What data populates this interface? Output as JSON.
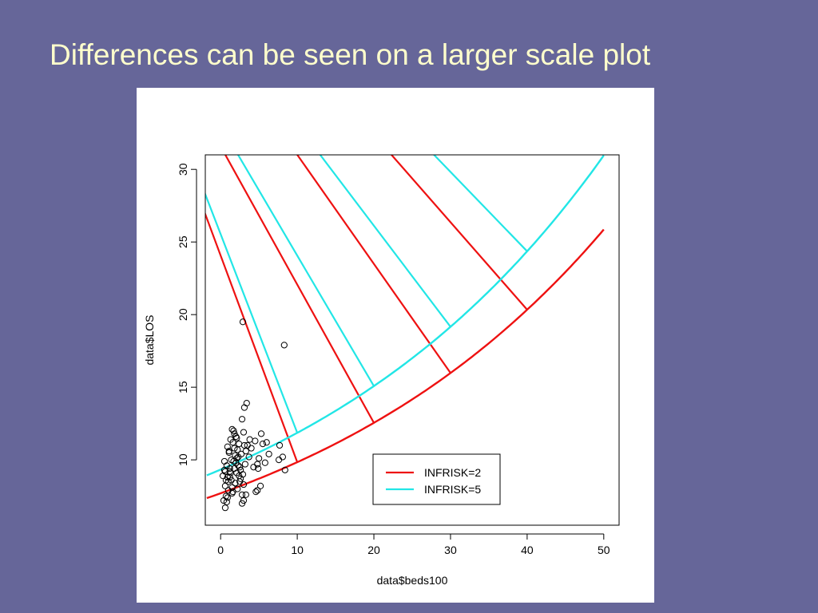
{
  "slide": {
    "title": "Differences can be seen on a larger scale plot"
  },
  "chart_data": {
    "type": "scatter",
    "title": "",
    "xlabel": "data$beds100",
    "ylabel": "data$LOS",
    "xlim": [
      -2,
      52
    ],
    "ylim": [
      5.5,
      31
    ],
    "x_ticks": [
      0,
      10,
      20,
      30,
      40,
      50
    ],
    "y_ticks": [
      10,
      15,
      20,
      25,
      30
    ],
    "grid": false,
    "legend_position": "bottom-right",
    "colors": {
      "red": "#ee1111",
      "cyan": "#22e6e6",
      "points": "#000000"
    },
    "points": {
      "x": [
        0.3,
        0.5,
        0.6,
        0.7,
        0.8,
        0.9,
        1.0,
        1.1,
        1.2,
        1.3,
        1.4,
        1.5,
        1.6,
        1.7,
        1.8,
        1.9,
        2.0,
        2.1,
        2.2,
        2.3,
        2.4,
        2.5,
        2.6,
        2.7,
        2.8,
        2.9,
        3.0,
        3.1,
        3.2,
        0.4,
        0.6,
        0.8,
        1.0,
        1.2,
        1.4,
        1.6,
        1.8,
        2.0,
        2.2,
        2.4,
        2.6,
        2.8,
        3.0,
        0.5,
        0.7,
        0.9,
        1.1,
        1.3,
        1.5,
        1.7,
        1.9,
        2.1,
        2.3,
        2.5,
        0.6,
        0.9,
        1.2,
        1.5,
        1.8,
        2.1,
        3.3,
        3.5,
        3.8,
        4.0,
        4.3,
        4.5,
        4.8,
        5.0,
        5.3,
        5.5,
        5.8,
        6.0,
        6.3,
        2.8,
        3.1,
        3.4,
        3.7,
        4.6,
        4.8,
        5.2,
        3.0,
        3.3,
        4.9,
        7.6,
        7.7,
        8.1,
        8.4,
        2.9,
        8.3
      ],
      "y": [
        8.9,
        9.3,
        8.2,
        7.5,
        9.6,
        8.8,
        7.9,
        10.6,
        9.2,
        11.4,
        8.6,
        12.1,
        7.8,
        9.9,
        10.8,
        8.4,
        11.6,
        9.1,
        8.0,
        10.2,
        11.1,
        9.5,
        8.7,
        10.4,
        7.6,
        9.0,
        8.3,
        11.0,
        9.7,
        7.2,
        6.7,
        7.1,
        8.5,
        9.4,
        10.0,
        11.2,
        11.8,
        9.8,
        10.7,
        8.9,
        9.3,
        7.0,
        11.9,
        9.9,
        8.6,
        7.4,
        10.5,
        9.1,
        8.1,
        12.0,
        10.3,
        11.5,
        9.6,
        8.5,
        9.2,
        10.9,
        8.8,
        7.7,
        9.4,
        10.1,
        10.6,
        11.0,
        11.4,
        10.8,
        9.5,
        11.3,
        9.7,
        10.1,
        11.8,
        11.1,
        9.8,
        11.2,
        10.4,
        12.8,
        13.6,
        13.9,
        10.2,
        7.8,
        7.9,
        8.2,
        7.2,
        7.6,
        9.4,
        10.0,
        11.0,
        10.2,
        9.3,
        19.5,
        17.9
      ]
    },
    "series": [
      {
        "name": "INFRISK=2",
        "color": "#ee1111",
        "fit_curve": {
          "x": [
            0,
            10,
            20,
            30,
            40,
            50
          ],
          "y": [
            7.7,
            9.84,
            12.55,
            15.98,
            20.34,
            25.86
          ]
        },
        "cross_segments": [
          {
            "x": [
              -4.5,
              10
            ],
            "y": [
              30.47,
              9.84
            ]
          },
          {
            "x": [
              -4.5,
              20
            ],
            "y": [
              35.87,
              12.55
            ]
          },
          {
            "x": [
              -4.5,
              30
            ],
            "y": [
              41.9,
              15.98
            ]
          },
          {
            "x": [
              -4.5,
              40
            ],
            "y": [
              47.14,
              20.34
            ]
          }
        ]
      },
      {
        "name": "INFRISK=5",
        "color": "#22e6e6",
        "fit_curve": {
          "x": [
            0,
            10,
            20,
            30,
            40,
            50
          ],
          "y": [
            9.33,
            11.86,
            15.08,
            19.16,
            24.36,
            30.96
          ]
        },
        "cross_segments": [
          {
            "x": [
              -4.5,
              10
            ],
            "y": [
              31.7,
              11.86
            ]
          },
          {
            "x": [
              -4.5,
              20
            ],
            "y": [
              37.09,
              15.08
            ]
          },
          {
            "x": [
              -4.5,
              30
            ],
            "y": [
              43.18,
              19.16
            ]
          },
          {
            "x": [
              -4.5,
              40
            ],
            "y": [
              48.68,
              24.36
            ]
          }
        ]
      }
    ]
  }
}
